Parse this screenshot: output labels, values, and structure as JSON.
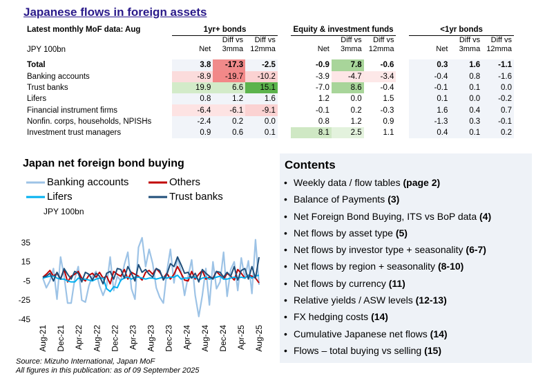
{
  "title": "Japanese flows in foreign assets",
  "table": {
    "header_note": "Latest monthly MoF data: Aug",
    "groups": [
      "1yr+ bonds",
      "Equity & investment funds",
      "<1yr bonds"
    ],
    "unit_label": "JPY 100bn",
    "sub_headers": [
      {
        "line1": "",
        "line2": "Net"
      },
      {
        "line1": "Diff vs",
        "line2": "3mma"
      },
      {
        "line1": "Diff vs",
        "line2": "12mma"
      }
    ],
    "rows": [
      {
        "label": "Total",
        "values": [
          "3.8",
          "-17.3",
          "-2.5",
          "-0.9",
          "7.8",
          "-0.6",
          "0.3",
          "1.6",
          "-1.1"
        ],
        "colors": [
          "#f1f4f9",
          "#f08a8a",
          "#f1f4f9",
          "#ffffff",
          "#a8d59a",
          "#ffffff",
          "#f1f4f9",
          "#f1f4f9",
          "#f1f4f9"
        ]
      },
      {
        "label": "Banking accounts",
        "values": [
          "-8.9",
          "-19.7",
          "-10.2",
          "-3.9",
          "-4.7",
          "-3.4",
          "-0.4",
          "0.8",
          "-1.6"
        ],
        "colors": [
          "#fbdcdc",
          "#f28888",
          "#fbd2d2",
          "#ffffff",
          "#fde6e6",
          "#fde8e8",
          "#f1f4f9",
          "#f1f4f9",
          "#f1f4f9"
        ]
      },
      {
        "label": "Trust banks",
        "values": [
          "19.9",
          "6.6",
          "15.1",
          "-7.0",
          "8.6",
          "-0.4",
          "-0.1",
          "0.1",
          "0.0"
        ],
        "colors": [
          "#d3ebc9",
          "#d3ebc9",
          "#5cb34c",
          "#ffffff",
          "#a8d59a",
          "#ffffff",
          "#f1f4f9",
          "#f1f4f9",
          "#f1f4f9"
        ]
      },
      {
        "label": "Lifers",
        "values": [
          "0.8",
          "1.2",
          "1.6",
          "1.2",
          "0.0",
          "1.5",
          "0.1",
          "0.0",
          "-0.2"
        ],
        "colors": [
          "#f1f4f9",
          "#f1f4f9",
          "#f1f4f9",
          "#ffffff",
          "#ffffff",
          "#ffffff",
          "#f1f4f9",
          "#f1f4f9",
          "#f1f4f9"
        ]
      },
      {
        "label": "Financial  instrument firms",
        "values": [
          "-6.4",
          "-6.1",
          "-9.1",
          "-0.1",
          "0.2",
          "-0.3",
          "1.6",
          "0.4",
          "0.7"
        ],
        "colors": [
          "#fde3e3",
          "#fde3e3",
          "#fbd2d2",
          "#ffffff",
          "#ffffff",
          "#ffffff",
          "#f1f4f9",
          "#f1f4f9",
          "#f1f4f9"
        ]
      },
      {
        "label": "Nonfin. corps, households, NPISHs",
        "values": [
          "-2.4",
          "0.2",
          "0.0",
          "0.8",
          "1.2",
          "0.9",
          "-1.3",
          "0.3",
          "-0.1"
        ],
        "colors": [
          "#f1f4f9",
          "#f1f4f9",
          "#f1f4f9",
          "#ffffff",
          "#ffffff",
          "#ffffff",
          "#f1f4f9",
          "#f1f4f9",
          "#f1f4f9"
        ]
      },
      {
        "label": "Investment trust managers",
        "values": [
          "0.9",
          "0.6",
          "0.1",
          "8.1",
          "2.5",
          "1.1",
          "0.4",
          "0.1",
          "0.2"
        ],
        "colors": [
          "#f1f4f9",
          "#f1f4f9",
          "#f1f4f9",
          "#cfe8c4",
          "#e3f2dd",
          "#ffffff",
          "#f1f4f9",
          "#f1f4f9",
          "#f1f4f9"
        ]
      }
    ]
  },
  "chart_data": {
    "type": "line",
    "title": "Japan net foreign bond buying",
    "ylabel": "JPY 100bn",
    "ylim": [
      -45,
      45
    ],
    "yticks": [
      35,
      15,
      -5,
      -25,
      -45
    ],
    "xtick_labels": [
      "Aug-21",
      "Dec-21",
      "Apr-22",
      "Aug-22",
      "Dec-22",
      "Apr-23",
      "Aug-23",
      "Dec-23",
      "Apr-24",
      "Aug-24",
      "Dec-24",
      "Apr-25",
      "Aug-25"
    ],
    "series": [
      {
        "name": "Banking accounts",
        "color": "#9dc3e6",
        "values": [
          -2,
          -12,
          -5,
          8,
          -24,
          20,
          0,
          -28,
          -28,
          -3,
          10,
          -25,
          -27,
          -10,
          0,
          5,
          -10,
          -20,
          -10,
          20,
          -15,
          0,
          -5,
          12,
          25,
          -13,
          -24,
          30,
          40,
          10,
          28,
          13,
          -12,
          -22,
          -28,
          5,
          28,
          -7,
          20,
          5,
          -20,
          0,
          17,
          -20,
          -42,
          -20,
          8,
          -30,
          15,
          -13,
          -6,
          25,
          -21,
          7,
          15,
          -15,
          19,
          -2,
          16,
          -18,
          38,
          -8.9
        ]
      },
      {
        "name": "Others",
        "color": "#c00000",
        "values": [
          -1,
          2,
          6,
          0,
          3,
          -3,
          7,
          -6,
          0,
          2,
          5,
          -2,
          -5,
          1,
          3,
          -1,
          4,
          -2,
          0,
          -8,
          5,
          2,
          0,
          7,
          -3,
          4,
          2,
          0,
          -4,
          4,
          6,
          2,
          8,
          4,
          -2,
          3,
          -3,
          2,
          10,
          3,
          -4,
          -5,
          5,
          -3,
          2,
          6,
          -3,
          -1,
          -2,
          5,
          1,
          -3,
          3,
          0,
          -4,
          7,
          3,
          -2,
          1,
          0,
          -2,
          -7
        ]
      },
      {
        "name": "Lifers",
        "color": "#00b0f0",
        "values": [
          -2,
          -1,
          0,
          0,
          -2,
          -3,
          -3,
          -5,
          -6,
          -6,
          -2,
          -3,
          -3,
          -4,
          -5,
          -3,
          -2,
          -2,
          -13,
          -16,
          -11,
          -12,
          -4,
          -2,
          -1,
          -3,
          -1,
          -1,
          -2,
          -3,
          -2,
          -2,
          -3,
          -2,
          -1,
          -2,
          -1,
          -1,
          1,
          -3,
          -2,
          -2,
          -1,
          -1,
          -4,
          -2,
          -1,
          -3,
          -2,
          -1,
          0,
          -3,
          -3,
          -2,
          -1,
          -2,
          -1,
          -2,
          1,
          -2,
          0.5,
          0.8
        ]
      },
      {
        "name": "Trust banks",
        "color": "#1f4e79",
        "values": [
          -1,
          0,
          3,
          -5,
          4,
          -3,
          8,
          2,
          -3,
          5,
          3,
          -6,
          4,
          2,
          -4,
          3,
          0,
          -8,
          3,
          5,
          -3,
          8,
          7,
          -2,
          10,
          3,
          -5,
          12,
          4,
          7,
          2,
          -1,
          8,
          6,
          -4,
          2,
          13,
          10,
          20,
          12,
          3,
          4,
          -2,
          3,
          -6,
          7,
          3,
          0,
          -3,
          5,
          4,
          -1,
          4,
          0,
          10,
          -4,
          6,
          8,
          -3,
          10,
          -2,
          19.9
        ]
      }
    ]
  },
  "contents": {
    "title": "Contents",
    "items": [
      {
        "text": "Weekly data / flow tables ",
        "ref": "(page 2)"
      },
      {
        "text": "Balance of Payments ",
        "ref": "(3)"
      },
      {
        "text": "Net Foreign Bond Buying, ITS vs BoP data ",
        "ref": "(4)"
      },
      {
        "text": "Net flows by asset type ",
        "ref": "(5)"
      },
      {
        "text": "Net flows by investor type + seasonality ",
        "ref": "(6-7)"
      },
      {
        "text": "Net flows by region + seasonality ",
        "ref": "(8-10)"
      },
      {
        "text": "Net flows by currency ",
        "ref": "(11)"
      },
      {
        "text": "Relative yields / ASW levels ",
        "ref": "(12-13)"
      },
      {
        "text": "FX hedging costs ",
        "ref": "(14)"
      },
      {
        "text": "Cumulative Japanese net flows ",
        "ref": "(14)"
      },
      {
        "text": "Flows – total buying vs selling ",
        "ref": "(15)"
      }
    ]
  },
  "footer": {
    "source": "Source: Mizuho International, Japan MoF",
    "asof": "All figures in this publication: as of 09 September 2025"
  }
}
